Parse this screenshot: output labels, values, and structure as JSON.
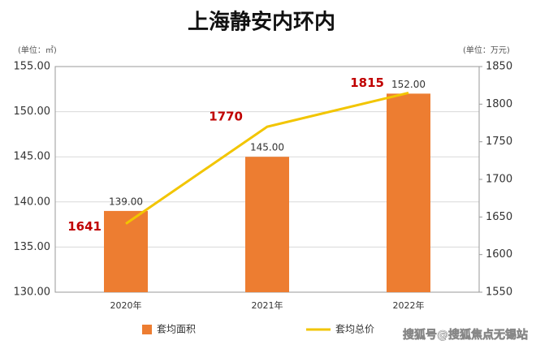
{
  "chart_data": {
    "type": "bar",
    "title": "上海静安内环内",
    "y_unit_label": "(单位：㎡)",
    "y2_unit_label": "(单位：万元)",
    "categories": [
      "2020年",
      "2021年",
      "2022年"
    ],
    "series": [
      {
        "name": "套均面积",
        "type": "bar",
        "color": "#ed7d31",
        "values": [
          139,
          145,
          152
        ],
        "value_labels": [
          "139.00",
          "145.00",
          "152.00"
        ]
      },
      {
        "name": "套均总价",
        "type": "line",
        "axis": "y2",
        "color": "#f2c500",
        "values": [
          1641,
          1770,
          1815
        ]
      }
    ],
    "ylim": [
      130,
      155
    ],
    "yticks": [
      {
        "value": 130,
        "label": "130.00"
      },
      {
        "value": 135,
        "label": "135.00"
      },
      {
        "value": 140,
        "label": "140.00"
      },
      {
        "value": 145,
        "label": "145.00"
      },
      {
        "value": 150,
        "label": "150.00"
      },
      {
        "value": 155,
        "label": "155.00"
      }
    ],
    "y2lim": [
      1550,
      1850
    ],
    "y2ticks": [
      1550,
      1600,
      1650,
      1700,
      1750,
      1800,
      1850
    ],
    "grid": true,
    "legend": "bottom",
    "watermark": "搜狐号@搜狐焦点无锡站"
  }
}
